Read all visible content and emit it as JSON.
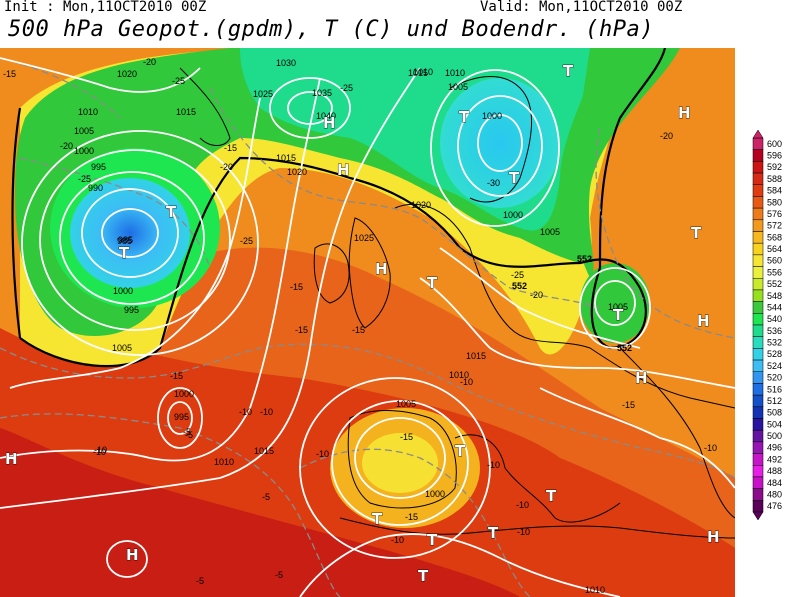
{
  "header": {
    "init_text": "Init : Mon,11OCT2010 00Z",
    "valid_text": "Valid: Mon,11OCT2010 00Z",
    "title": "500 hPa Geopot.(gpdm), T (C) und Bodendr. (hPa)"
  },
  "colorbar": {
    "levels": [
      "600",
      "596",
      "592",
      "588",
      "584",
      "580",
      "576",
      "572",
      "568",
      "564",
      "560",
      "556",
      "552",
      "548",
      "544",
      "540",
      "536",
      "532",
      "528",
      "524",
      "520",
      "516",
      "512",
      "508",
      "504",
      "500",
      "496",
      "492",
      "488",
      "484",
      "480",
      "476"
    ],
    "colors": [
      "#cc2266",
      "#b4001e",
      "#cd1414",
      "#d72a14",
      "#e13c10",
      "#e85a14",
      "#ee7a18",
      "#f29a1e",
      "#f6b81e",
      "#f8d21e",
      "#f6e632",
      "#eaf03c",
      "#c8ea28",
      "#96e01e",
      "#3cc83c",
      "#1ee650",
      "#1edc8c",
      "#28dcbe",
      "#32d2e6",
      "#3cbef5",
      "#3296f0",
      "#1e6ee6",
      "#1450c8",
      "#1432b4",
      "#2814a0",
      "#6414a0",
      "#9614b4",
      "#c814c8",
      "#e61ee6",
      "#c810c8",
      "#8c0a8c",
      "#5a005a"
    ]
  },
  "map_labels": {
    "pressure": [
      "1020",
      "1010",
      "1005",
      "1000",
      "995",
      "990",
      "985",
      "1015",
      "1025",
      "1030",
      "1035",
      "1040",
      "1000",
      "995",
      "1005",
      "1015",
      "1020",
      "1025",
      "1010",
      "1000",
      "1005",
      "1015",
      "1010",
      "1020",
      "985",
      "1000",
      "1005",
      "1010",
      "1015",
      "1005",
      "995",
      "1000",
      "1010",
      "1015",
      "1000",
      "1005",
      "1010"
    ],
    "temperature": [
      "-15",
      "-20",
      "-25",
      "-20",
      "-25",
      "-15",
      "-20",
      "-25",
      "-15",
      "-10",
      "-15",
      "-10",
      "-5",
      "-10",
      "-5",
      "-15",
      "-10",
      "-15",
      "-5",
      "-10",
      "-25",
      "-20",
      "-15",
      "-10",
      "-10",
      "-10",
      "-5",
      "-10",
      "-15",
      "-10",
      "-25",
      "-30",
      "-20",
      "-15",
      "-5",
      "-10"
    ],
    "geopotential": [
      "552",
      "552",
      "552"
    ],
    "highs": [
      "H",
      "H",
      "H",
      "H",
      "H",
      "H",
      "H",
      "H",
      "H"
    ],
    "lows": [
      "T",
      "T",
      "T",
      "T",
      "T",
      "T",
      "T",
      "T",
      "T",
      "T",
      "T",
      "T",
      "T",
      "T"
    ]
  }
}
